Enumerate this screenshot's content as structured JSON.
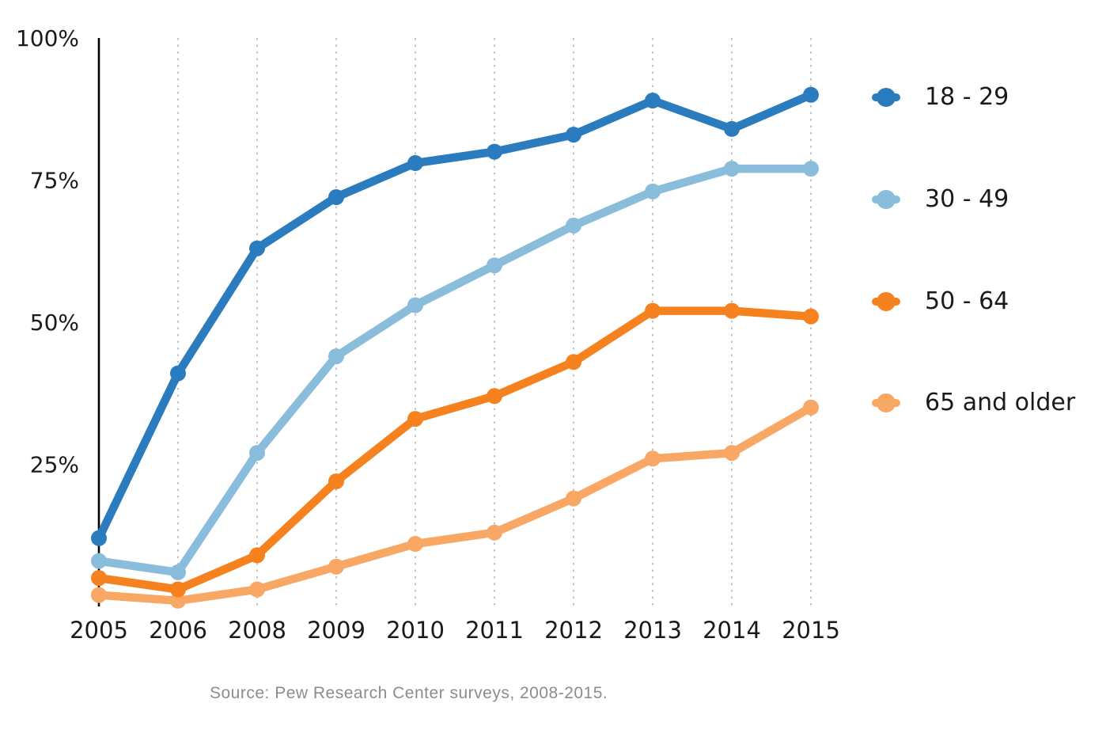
{
  "chart_data": {
    "type": "line",
    "x_labels": [
      "2005",
      "2006",
      "2008",
      "2009",
      "2010",
      "2011",
      "2012",
      "2013",
      "2014",
      "2015"
    ],
    "y_axis": {
      "unit": "%",
      "min": 0,
      "max": 100,
      "ticks": [
        {
          "value": 100,
          "label": "100%"
        },
        {
          "value": 75,
          "label": "75%"
        },
        {
          "value": 50,
          "label": "50%"
        },
        {
          "value": 25,
          "label": "25%"
        }
      ]
    },
    "grid": {
      "vertical_dotted": true,
      "horizontal": false
    },
    "legend_position": "right",
    "series": [
      {
        "name": "18 - 29",
        "color": "#2a7cbe",
        "values": [
          12,
          41,
          63,
          72,
          78,
          80,
          83,
          89,
          84,
          90
        ]
      },
      {
        "name": "30 - 49",
        "color": "#89bddb",
        "values": [
          8,
          6,
          27,
          44,
          53,
          60,
          67,
          73,
          77,
          77
        ]
      },
      {
        "name": "50 - 64",
        "color": "#f6821f",
        "values": [
          5,
          3,
          9,
          22,
          33,
          37,
          43,
          52,
          52,
          51
        ]
      },
      {
        "name": "65 and older",
        "color": "#f8a765",
        "values": [
          2,
          1,
          3,
          7,
          11,
          13,
          19,
          26,
          27,
          35
        ]
      }
    ],
    "source_note": "Source: Pew Research Center surveys, 2008-2015."
  },
  "colors": {
    "background": "#ffffff",
    "axis_line": "#000000",
    "tick_text": "#1a1a1a",
    "gridline": "#c2c2c2",
    "source_text": "#8c8c8c"
  }
}
